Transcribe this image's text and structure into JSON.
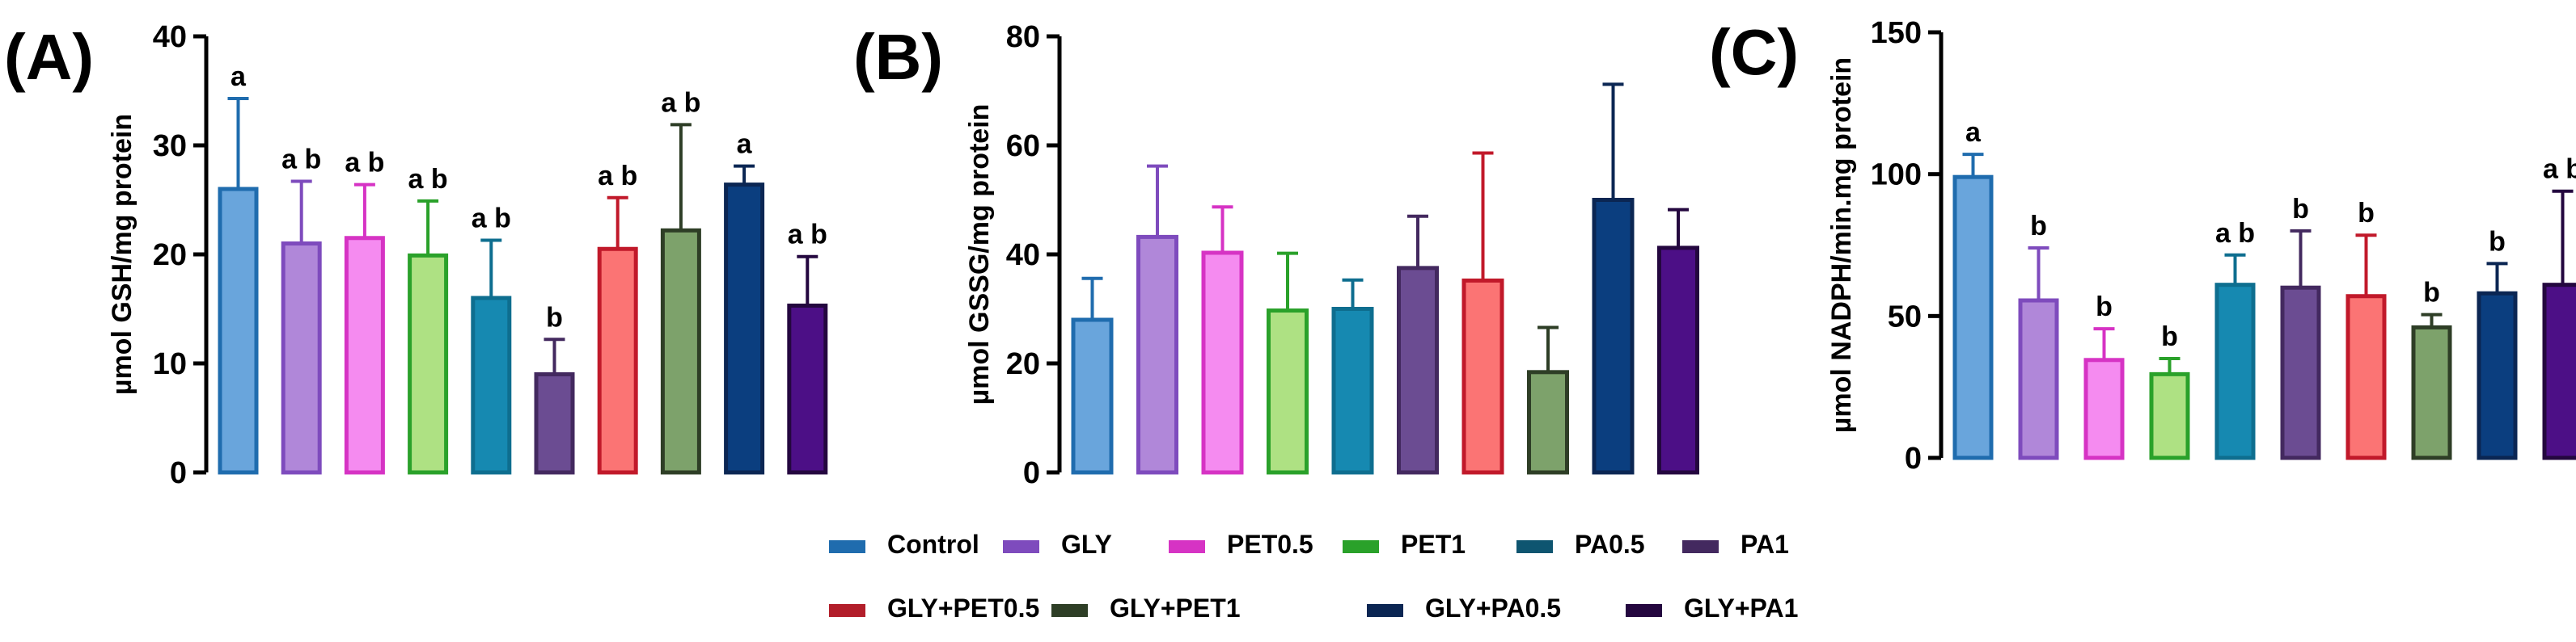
{
  "chart_data": [
    {
      "type": "bar",
      "panel_label": "(A)",
      "ylabel": "µmol GSH/mg protein",
      "ylim": [
        0,
        40
      ],
      "yticks": [
        0,
        10,
        20,
        30,
        40
      ],
      "categories": [
        "Control",
        "GLY",
        "PET0.5",
        "PET1",
        "PA0.5",
        "PA1",
        "GLY+PET0.5",
        "GLY+PET1",
        "GLY+PA0.5",
        "GLY+PA1"
      ],
      "values": [
        26,
        21,
        21.5,
        19.9,
        16,
        9,
        20.5,
        22.2,
        26.4,
        15.3
      ],
      "errors": [
        8.3,
        5.7,
        4.9,
        5.0,
        5.3,
        3.2,
        4.7,
        9.7,
        1.7,
        4.5
      ],
      "annotations": [
        "a",
        "a b",
        "a b",
        "a b",
        "a b",
        "b",
        "a b",
        "a b",
        "a",
        "a b"
      ]
    },
    {
      "type": "bar",
      "panel_label": "(B)",
      "ylabel": "µmol GSSG/mg protein",
      "ylim": [
        0,
        80
      ],
      "yticks": [
        0,
        20,
        40,
        60,
        80
      ],
      "categories": [
        "Control",
        "GLY",
        "PET0.5",
        "PET1",
        "PA0.5",
        "PA1",
        "GLY+PET0.5",
        "GLY+PET1",
        "GLY+PA0.5",
        "GLY+PA1"
      ],
      "values": [
        28,
        43.2,
        40.3,
        29.7,
        30,
        37.5,
        35.2,
        18.4,
        50,
        41.2
      ],
      "errors": [
        7.6,
        13,
        8.4,
        10.5,
        5.3,
        9.5,
        23.4,
        8.2,
        21.2,
        7
      ],
      "annotations": [
        "",
        "",
        "",
        "",
        "",
        "",
        "",
        "",
        "",
        ""
      ]
    },
    {
      "type": "bar",
      "panel_label": "(C)",
      "ylabel": "µmol NADPH/min.mg protein",
      "ylim": [
        0,
        150
      ],
      "yticks": [
        0,
        50,
        100,
        150
      ],
      "categories": [
        "Control",
        "GLY",
        "PET0.5",
        "PET1",
        "PA0.5",
        "PA1",
        "GLY+PET0.5",
        "GLY+PET1",
        "GLY+PA0.5",
        "GLY+PA1"
      ],
      "values": [
        99,
        55.5,
        34.5,
        29.5,
        61,
        60,
        57,
        46,
        58,
        61
      ],
      "errors": [
        8,
        18.5,
        11,
        5.5,
        10.5,
        20,
        21.5,
        4.5,
        10.5,
        33
      ],
      "annotations": [
        "a",
        "b",
        "b",
        "b",
        "a b",
        "b",
        "b",
        "b",
        "b",
        "a b"
      ]
    }
  ],
  "legend": {
    "placement": "bottom-center",
    "items": [
      {
        "label": "Control",
        "color": "#1f6cae"
      },
      {
        "label": "GLY",
        "color": "#7e4bbd"
      },
      {
        "label": "PET0.5",
        "color": "#d633c4"
      },
      {
        "label": "PET1",
        "color": "#2aa12a"
      },
      {
        "label": "PA0.5",
        "color": "#0e5570"
      },
      {
        "label": "PA1",
        "color": "#43295f"
      },
      {
        "label": "GLY+PET0.5",
        "color": "#b21e2a"
      },
      {
        "label": "GLY+PET1",
        "color": "#2e3e26"
      },
      {
        "label": "GLY+PA0.5",
        "color": "#0b2653"
      },
      {
        "label": "GLY+PA1",
        "color": "#24073f"
      }
    ]
  },
  "series_style": {
    "fills": [
      "#69a5dc",
      "#b087d9",
      "#f58bf0",
      "#aee183",
      "#1689b1",
      "#6b4c92",
      "#fb7474",
      "#7da26b",
      "#0b3e7f",
      "#4c0f86"
    ],
    "strokes": [
      "#1f6cae",
      "#7e4bbd",
      "#d633c4",
      "#2aa12a",
      "#0e6e8f",
      "#43295f",
      "#c1192a",
      "#2e3e26",
      "#0b2653",
      "#24073f"
    ]
  }
}
